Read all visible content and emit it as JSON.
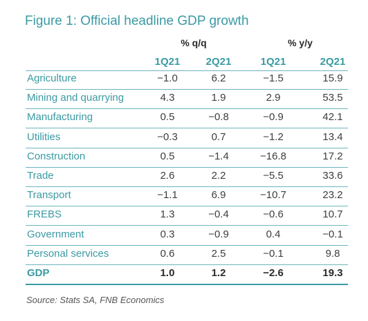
{
  "chart_data": {
    "type": "table",
    "title": "Figure 1: Official headline GDP growth",
    "column_groups": [
      {
        "label": "% q/q",
        "columns": [
          "1Q21",
          "2Q21"
        ]
      },
      {
        "label": "% y/y",
        "columns": [
          "1Q21",
          "2Q21"
        ]
      }
    ],
    "columns": [
      "1Q21",
      "2Q21",
      "1Q21",
      "2Q21"
    ],
    "rows": [
      {
        "label": "Agriculture",
        "values": [
          "−1.0",
          "6.2",
          "−1.5",
          "15.9"
        ]
      },
      {
        "label": "Mining and quarrying",
        "values": [
          "4.3",
          "1.9",
          "2.9",
          "53.5"
        ]
      },
      {
        "label": "Manufacturing",
        "values": [
          "0.5",
          "−0.8",
          "−0.9",
          "42.1"
        ]
      },
      {
        "label": "Utilities",
        "values": [
          "−0.3",
          "0.7",
          "−1.2",
          "13.4"
        ]
      },
      {
        "label": "Construction",
        "values": [
          "0.5",
          "−1.4",
          "−16.8",
          "17.2"
        ]
      },
      {
        "label": "Trade",
        "values": [
          "2.6",
          "2.2",
          "−5.5",
          "33.6"
        ]
      },
      {
        "label": "Transport",
        "values": [
          "−1.1",
          "6.9",
          "−10.7",
          "23.2"
        ]
      },
      {
        "label": "FREBS",
        "values": [
          "1.3",
          "−0.4",
          "−0.6",
          "10.7"
        ]
      },
      {
        "label": "Government",
        "values": [
          "0.3",
          "−0.9",
          "0.4",
          "−0.1"
        ]
      },
      {
        "label": "Personal services",
        "values": [
          "0.6",
          "2.5",
          "−0.1",
          "9.8"
        ]
      },
      {
        "label": "GDP",
        "values": [
          "1.0",
          "1.2",
          "−2.6",
          "19.3"
        ],
        "emphasis": true
      }
    ],
    "source": "Source: Stats SA, FNB Economics",
    "accent_color": "#3a9aa3"
  }
}
